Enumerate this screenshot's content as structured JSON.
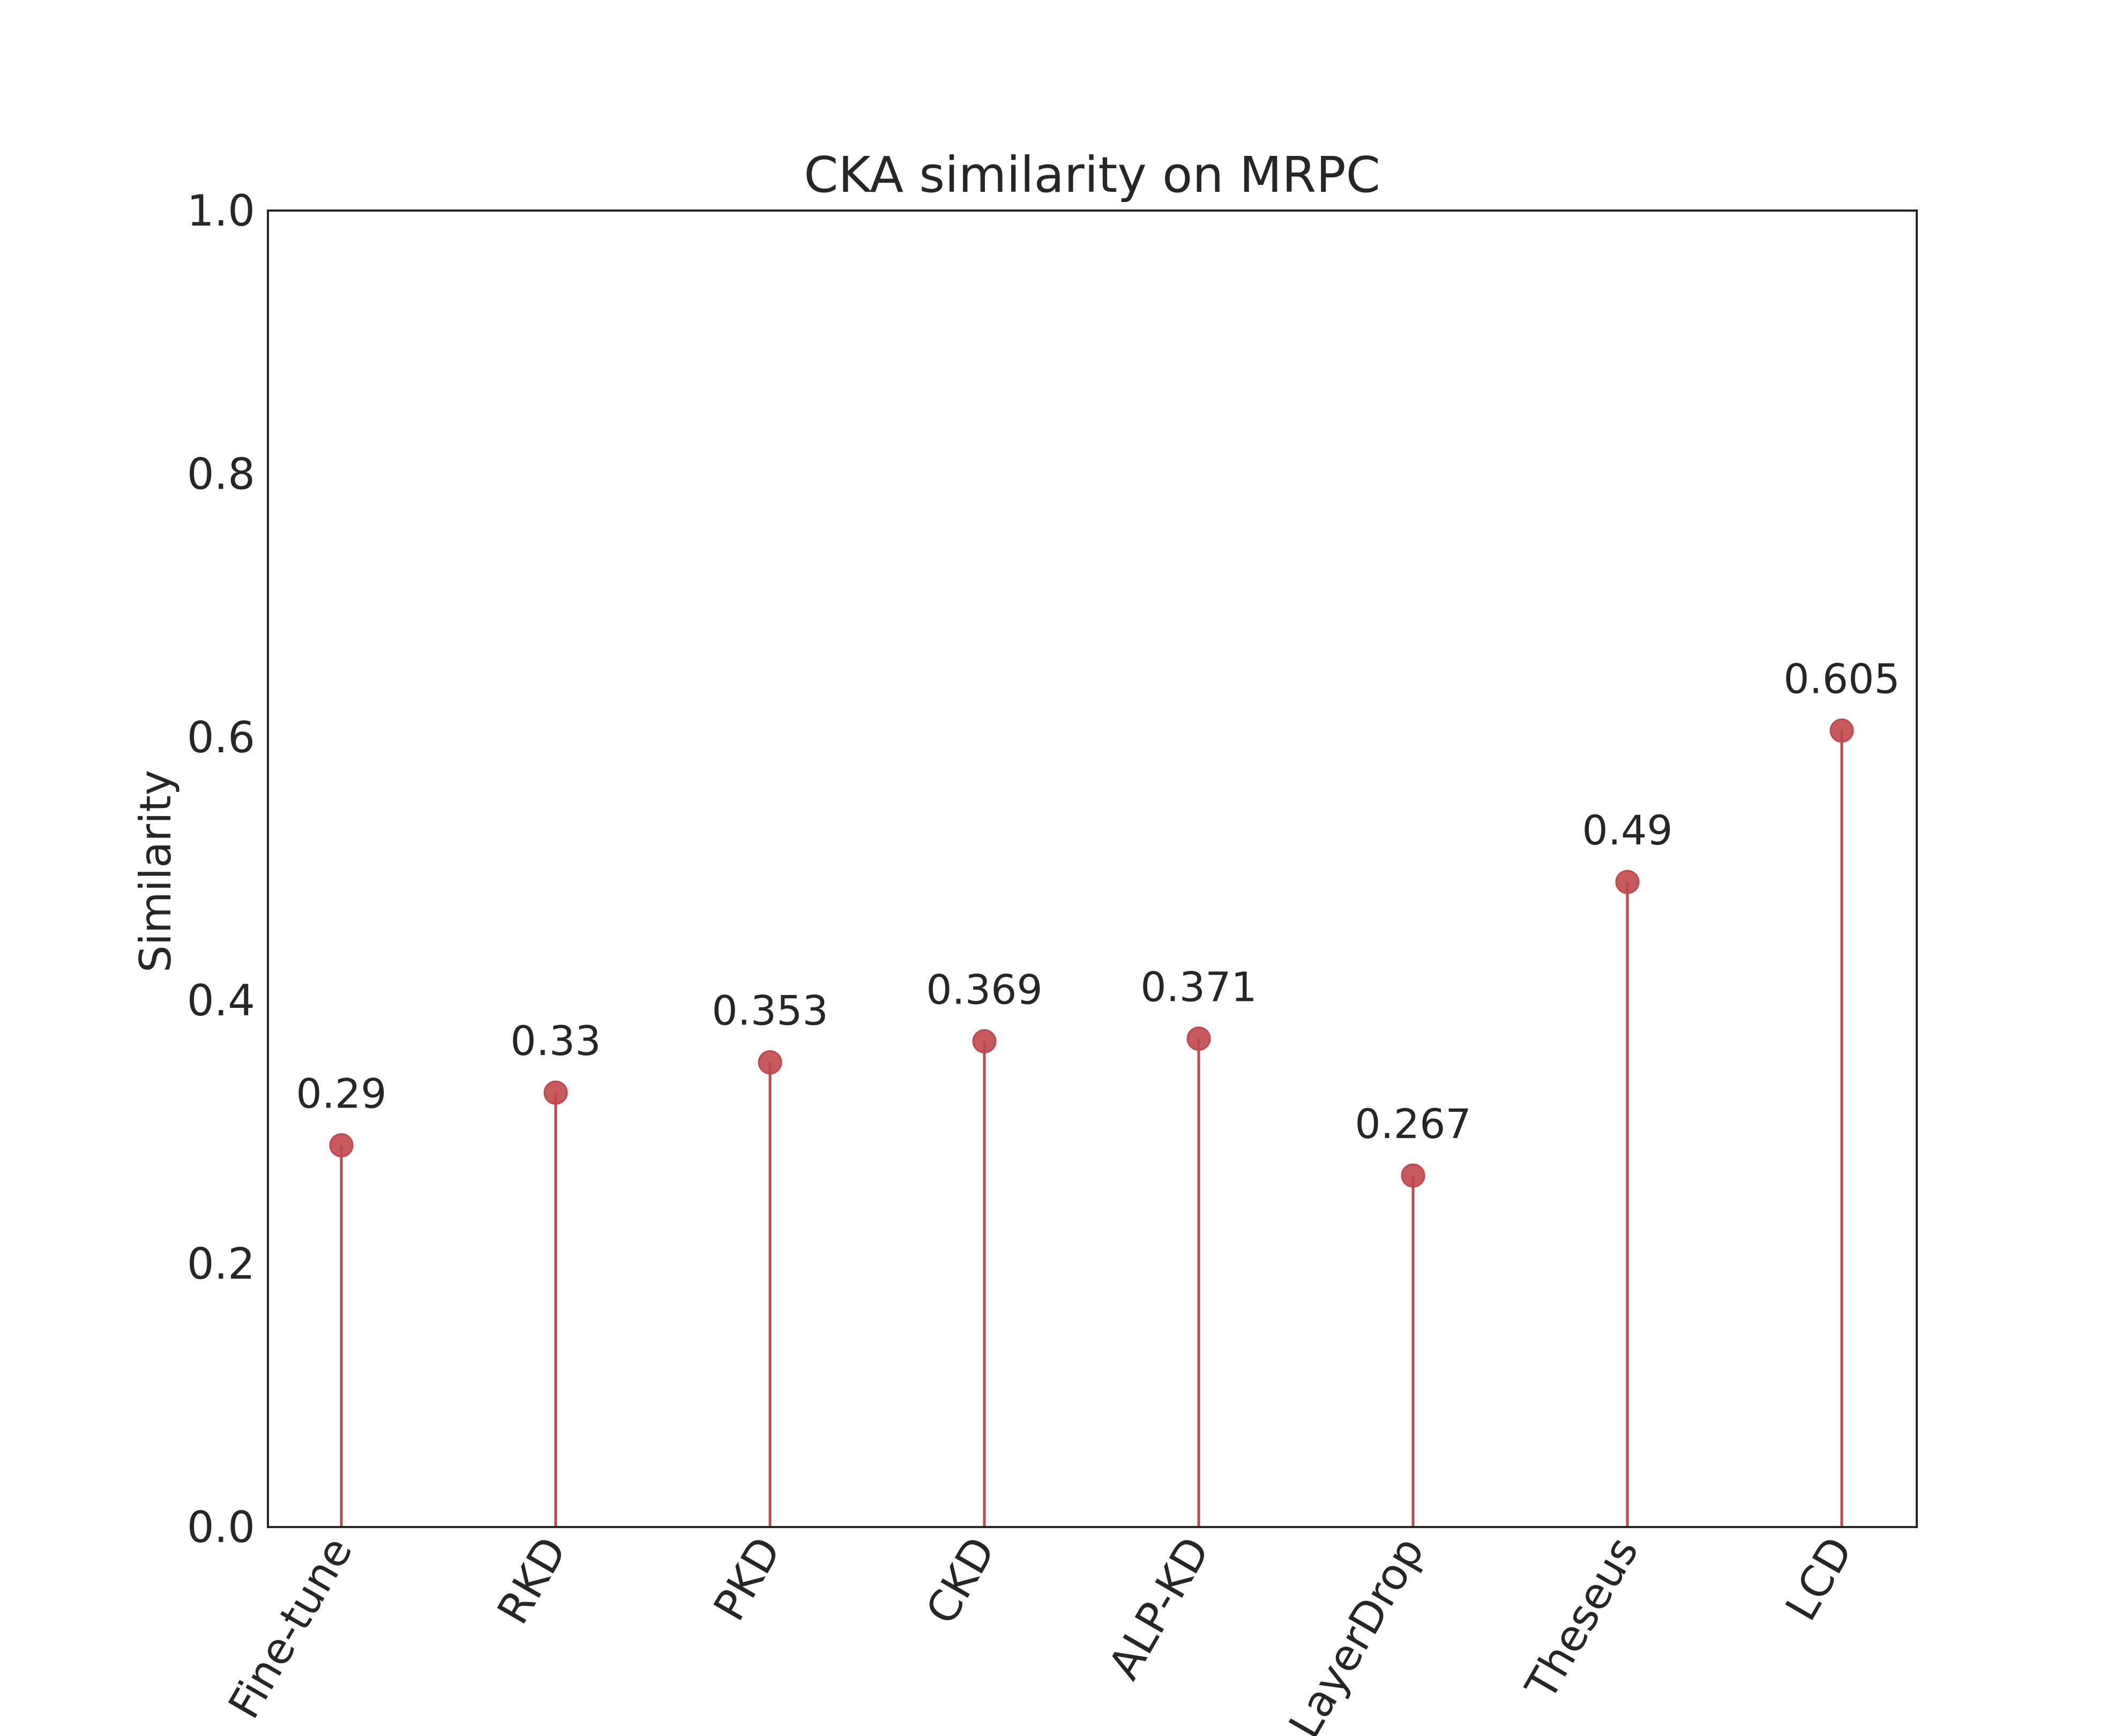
{
  "chart_data": {
    "type": "lollipop",
    "title": "CKA similarity on MRPC",
    "xlabel": "",
    "ylabel": "Similarity",
    "categories": [
      "Fine-tune",
      "RKD",
      "PKD",
      "CKD",
      "ALP-KD",
      "LayerDrop",
      "Theseus",
      "LCD"
    ],
    "values": [
      0.29,
      0.33,
      0.353,
      0.369,
      0.371,
      0.267,
      0.49,
      0.605
    ],
    "value_labels": [
      "0.29",
      "0.33",
      "0.353",
      "0.369",
      "0.371",
      "0.267",
      "0.49",
      "0.605"
    ],
    "ylim": [
      0.0,
      1.0
    ],
    "yticks": [
      0.0,
      0.2,
      0.4,
      0.6,
      0.8,
      1.0
    ],
    "ytick_labels": [
      "0.0",
      "0.2",
      "0.4",
      "0.6",
      "0.8",
      "1.0"
    ],
    "grid": false,
    "legend": "none",
    "colors": {
      "marker": "#c0484d",
      "stem": "#c0484d",
      "text": "#262626",
      "frame": "#262626"
    }
  }
}
